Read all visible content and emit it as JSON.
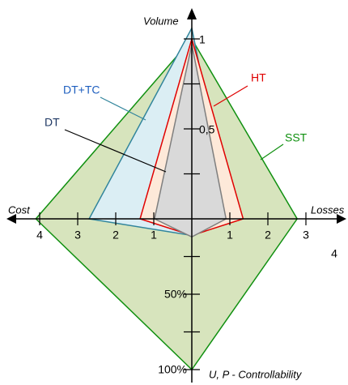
{
  "chart_data": {
    "type": "radar",
    "axes": {
      "up": {
        "label": "Volume",
        "ticks": [
          0.25,
          {
            "value": 0.5,
            "label": "0,5"
          },
          0.75,
          1
        ]
      },
      "right": {
        "label": "Losses",
        "ticks": [
          1,
          2,
          3,
          4
        ]
      },
      "down": {
        "label": "U, P - Controllability",
        "ticks": [
          25,
          {
            "value": 50,
            "label": "50%"
          },
          75,
          {
            "value": 100,
            "label": "100%"
          }
        ]
      },
      "left": {
        "label": "Cost",
        "ticks": [
          1,
          2,
          3,
          4
        ]
      }
    },
    "series": [
      {
        "name": "SST",
        "color": "#109010",
        "fill": "#d7e4bd",
        "values": [
          1.0,
          2.77,
          100,
          4.1
        ]
      },
      {
        "name": "DT+TC",
        "color": "#31859c",
        "fill": "#dbeef4",
        "values": [
          1.06,
          1.0,
          11,
          2.7
        ]
      },
      {
        "name": "HT",
        "color": "#e00000",
        "fill": "#fde9d9",
        "values": [
          1.0,
          1.35,
          11,
          1.36
        ]
      },
      {
        "name": "DT",
        "color": "#7f7f7f",
        "fill": "#d9d9d9",
        "values": [
          0.97,
          0.9,
          12,
          0.98
        ]
      }
    ]
  }
}
